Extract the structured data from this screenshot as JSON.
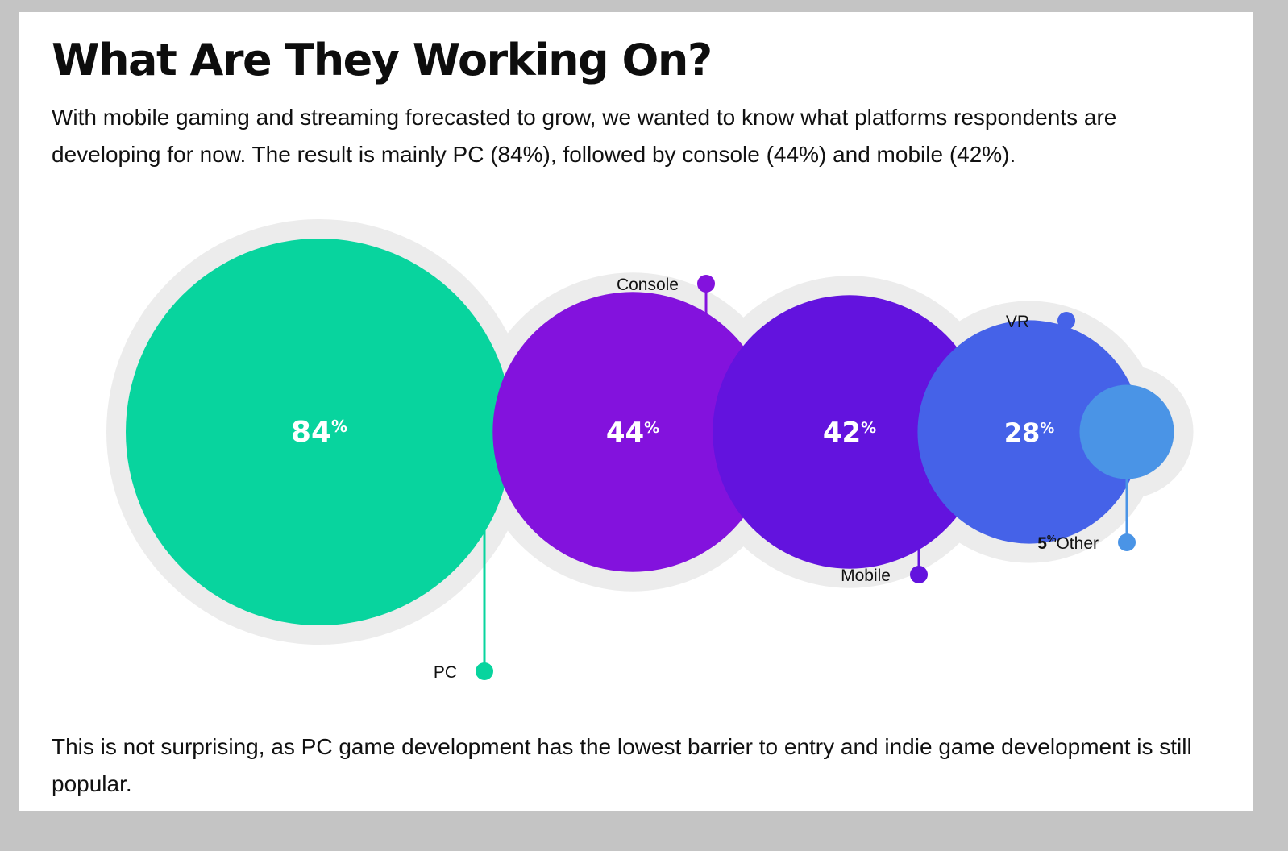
{
  "title": "What Are They Working On?",
  "intro": "With mobile gaming and streaming forecasted to grow, we wanted to know what platforms respondents are developing for now. The result is mainly PC (84%), followed by console (44%) and mobile (42%).",
  "outro": "This is not surprising, as PC game development has the lowest barrier to entry and indie game development is still popular.",
  "chart_data": {
    "type": "bubble",
    "title": "What Are They Working On?",
    "unit": "%",
    "series": [
      {
        "label": "PC",
        "value": 84,
        "color": "#08d49e"
      },
      {
        "label": "Console",
        "value": 44,
        "color": "#8312dd"
      },
      {
        "label": "Mobile",
        "value": 42,
        "color": "#6313de"
      },
      {
        "label": "VR",
        "value": 28,
        "color": "#4562e8"
      },
      {
        "label": "Other",
        "value": 5,
        "color": "#4a94e6"
      }
    ],
    "halo_color": "#ececec"
  }
}
